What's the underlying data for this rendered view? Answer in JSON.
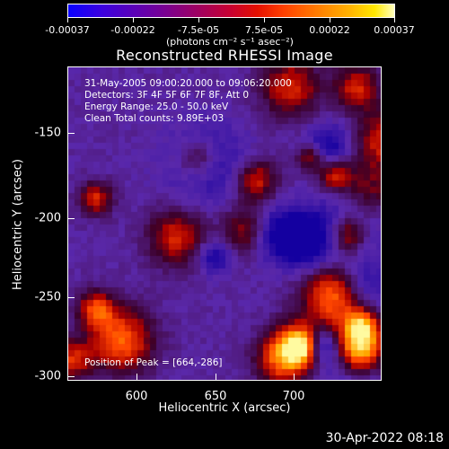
{
  "colorbar": {
    "ticks": [
      "-0.00037",
      "-0.00022",
      "-7.5e-05",
      "7.5e-05",
      "0.00022",
      "0.00037"
    ],
    "unit_line": "(photons cm⁻² s⁻¹ asec⁻²)"
  },
  "title": "Reconstructed RHESSI Image",
  "info": {
    "line1": "31-May-2005 09:00:20.000 to 09:06:20.000",
    "line2": "Detectors: 3F 4F 5F 6F 7F 8F, Att 0",
    "line3": "Energy Range: 25.0 - 50.0 keV",
    "line4": "Clean     Total counts: 9.89E+03",
    "peak": "Position of Peak = [664,-286]"
  },
  "axes": {
    "xlabel": "Heliocentric X (arcsec)",
    "ylabel": "Heliocentric Y (arcsec)",
    "xticks": [
      "600",
      "650",
      "700"
    ],
    "yticks": [
      "-150",
      "-200",
      "-250",
      "-300"
    ]
  },
  "timestamp": "30-Apr-2022 08:18"
}
